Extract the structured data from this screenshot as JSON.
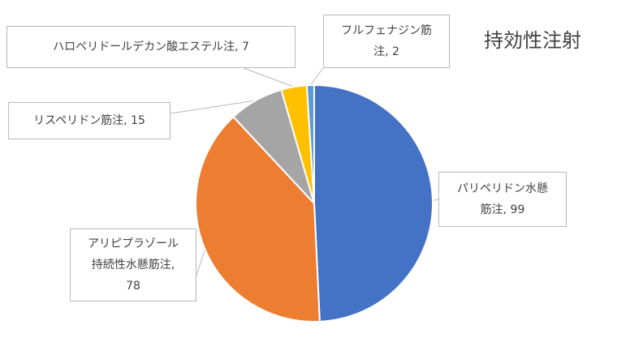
{
  "chart_data": {
    "type": "pie",
    "title": "持効性注射",
    "colors": [
      "#4472C4",
      "#ED7D31",
      "#A5A5A5",
      "#FFC000",
      "#5B9BD5"
    ],
    "slices": [
      {
        "label": "パリペリドン水懸筋注",
        "value": 99,
        "label_lines": [
          "パリペリドン水懸",
          "筋注, 99"
        ]
      },
      {
        "label": "アリピプラゾール持続性水懸筋注",
        "value": 78,
        "label_lines": [
          "アリピプラゾール",
          "持続性水懸筋注,",
          "78"
        ]
      },
      {
        "label": "リスペリドン筋注",
        "value": 15,
        "label_lines": [
          "リスペリドン筋注, 15"
        ]
      },
      {
        "label": "ハロペリドールデカン酸エステル注",
        "value": 7,
        "label_lines": [
          "ハロペリドールデカン酸エステル注, 7"
        ]
      },
      {
        "label": "フルフェナジン筋注",
        "value": 2,
        "label_lines": [
          "フルフェナジン筋",
          "注, 2"
        ]
      }
    ]
  }
}
